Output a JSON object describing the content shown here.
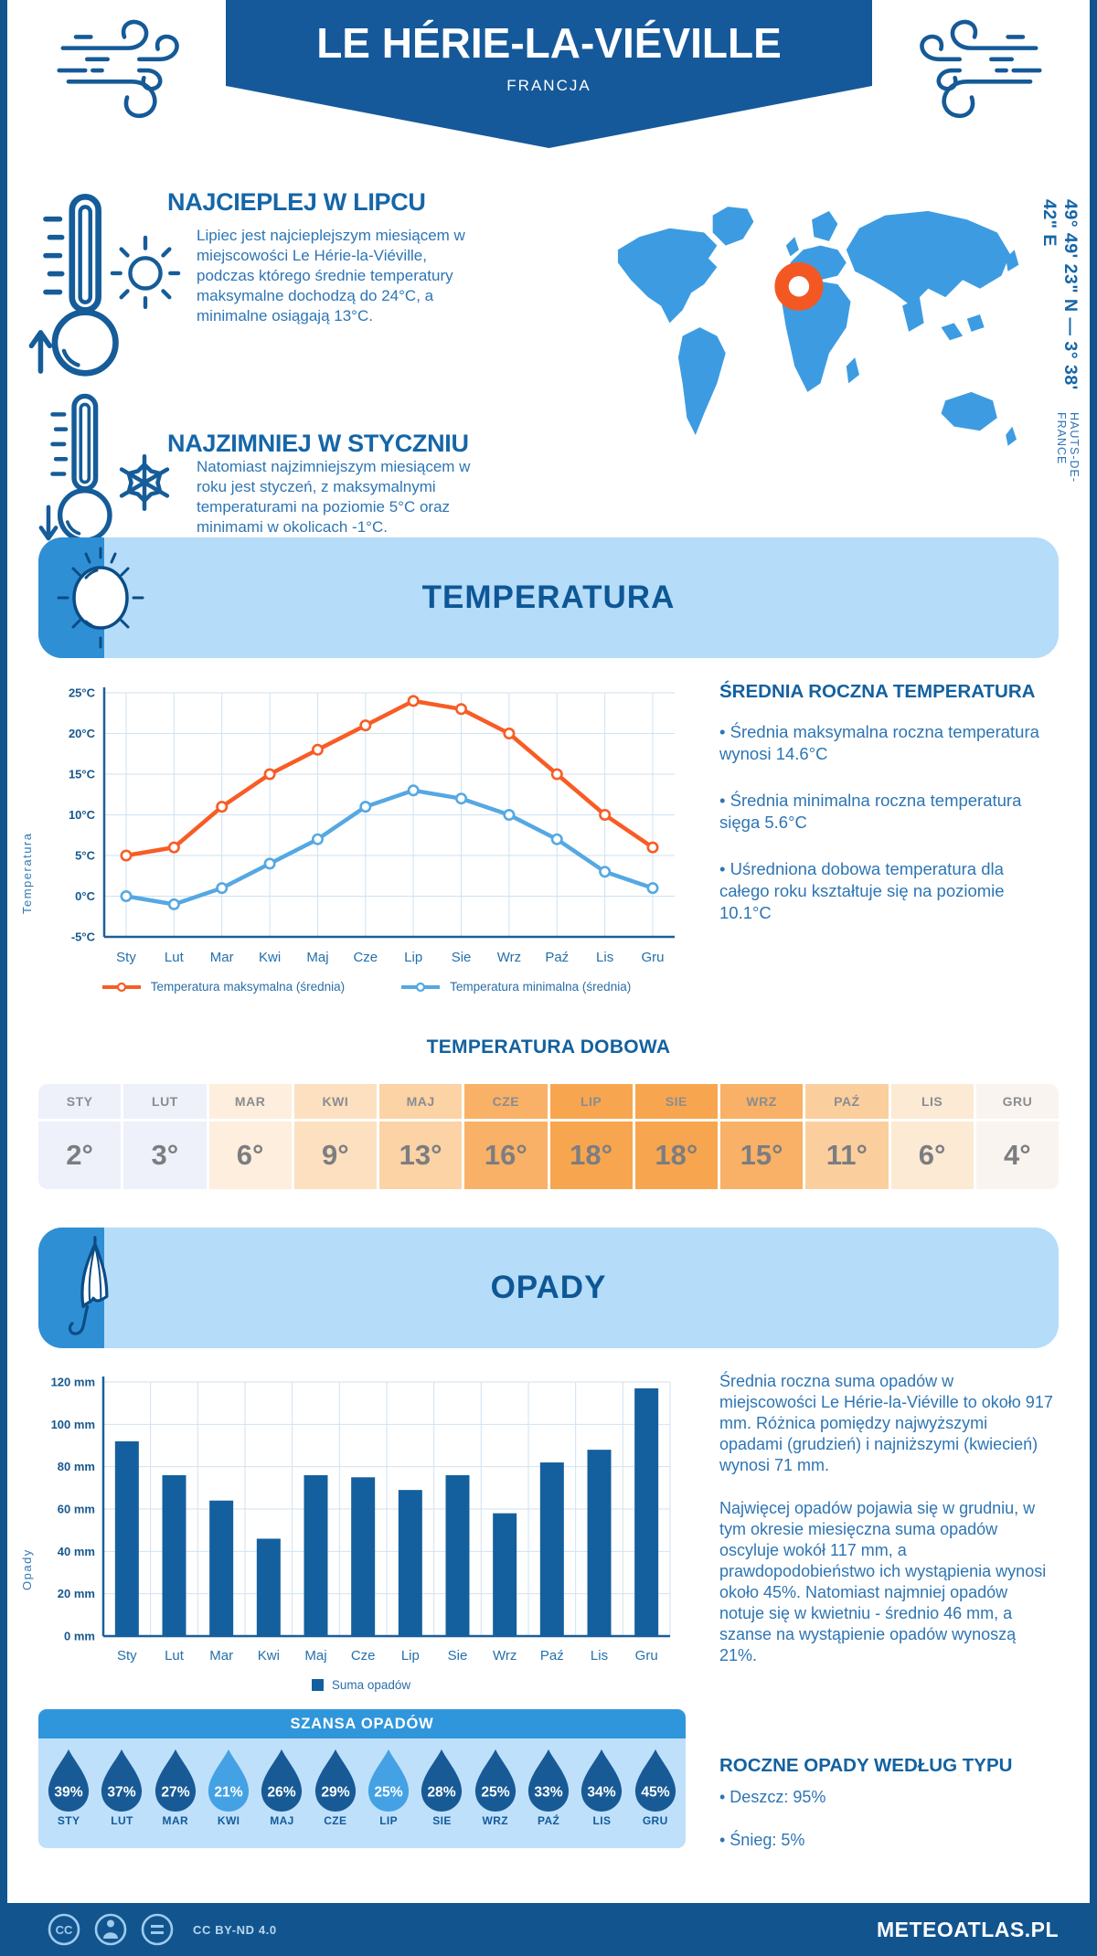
{
  "banner": {
    "title": "LE HÉRIE-LA-VIÉVILLE",
    "country": "FRANCJA"
  },
  "geo": {
    "coordinates": "49° 49' 23\" N — 3° 38' 42\" E",
    "region": "HAUTS-DE-FRANCE"
  },
  "highlights": {
    "warmest": {
      "title": "NAJCIEPLEJ W LIPCU",
      "text": "Lipiec jest najcieplejszym miesiącem w miejscowości Le Hérie-la-Viéville, podczas którego średnie temperatury maksymalne dochodzą do 24°C, a minimalne osiągają 13°C."
    },
    "coldest": {
      "title": "NAJZIMNIEJ W STYCZNIU",
      "text": "Natomiast najzimniejszym miesiącem w roku jest styczeń, z maksymalnymi temperaturami na poziomie 5°C oraz minimami w okolicach -1°C."
    }
  },
  "temperature": {
    "band_title": "TEMPERATURA",
    "annual": {
      "title": "ŚREDNIA ROCZNA TEMPERATURA",
      "bullets": [
        "• Średnia maksymalna roczna temperatura wynosi 14.6°C",
        "• Średnia minimalna roczna temperatura sięga 5.6°C",
        "• Uśredniona dobowa temperatura dla całego roku kształtuje się na poziomie 10.1°C"
      ]
    },
    "daily": {
      "title": "TEMPERATURA DOBOWA",
      "months": [
        "STY",
        "LUT",
        "MAR",
        "KWI",
        "MAJ",
        "CZE",
        "LIP",
        "SIE",
        "WRZ",
        "PAŹ",
        "LIS",
        "GRU"
      ],
      "values": [
        "2°",
        "3°",
        "6°",
        "9°",
        "13°",
        "16°",
        "18°",
        "18°",
        "15°",
        "11°",
        "6°",
        "4°"
      ],
      "colors": [
        "#eef1fa",
        "#eef1fa",
        "#fdeedd",
        "#fce0c0",
        "#fbd3a5",
        "#f8b166",
        "#f7a64f",
        "#f7a64f",
        "#f8b166",
        "#fbcf9d",
        "#fcead4",
        "#faf4f0"
      ]
    }
  },
  "precipitation": {
    "band_title": "OPADY",
    "legend": "Suma opadów",
    "paragraphs": [
      "Średnia roczna suma opadów w miejscowości Le Hérie-la-Viéville to około 917 mm. Różnica pomiędzy najwyższymi opadami (grudzień) i najniższymi (kwiecień) wynosi 71 mm.",
      "Najwięcej opadów pojawia się w grudniu, w tym okresie miesięczna suma opadów oscyluje wokół 117 mm, a prawdopodobieństwo ich wystąpienia wynosi około 45%. Natomiast najmniej opadów notuje się w kwietniu - średnio 46 mm, a szanse na wystąpienie opadów wynoszą 21%."
    ],
    "chance": {
      "title": "SZANSA OPADÓW",
      "months": [
        "STY",
        "LUT",
        "MAR",
        "KWI",
        "MAJ",
        "CZE",
        "LIP",
        "SIE",
        "WRZ",
        "PAŹ",
        "LIS",
        "GRU"
      ],
      "percents": [
        "39%",
        "37%",
        "27%",
        "21%",
        "26%",
        "29%",
        "25%",
        "28%",
        "25%",
        "33%",
        "34%",
        "45%"
      ],
      "drop_colors": [
        "#185a95",
        "#185a95",
        "#185a95",
        "#43a1e4",
        "#185a95",
        "#185a95",
        "#43a1e4",
        "#185a95",
        "#185a95",
        "#185a95",
        "#185a95",
        "#185a95"
      ]
    },
    "types": {
      "title": "ROCZNE OPADY WEDŁUG TYPU",
      "bullets": [
        "• Deszcz: 95%",
        "• Śnieg: 5%"
      ]
    }
  },
  "footer": {
    "license": "CC BY-ND 4.0",
    "site": "METEOATLAS.PL"
  },
  "colors": {
    "brand_blue": "#15599a",
    "band_light_blue": "#b5dcf8",
    "band_accent": "#2f8fd4",
    "map_blue": "#3d9ce1",
    "marker_orange": "#f35822",
    "warm_series": "#f85c25",
    "cold_series": "#55a8e2",
    "bar_blue": "#14609e"
  },
  "chart_data": [
    {
      "type": "line",
      "title": "TEMPERATURA",
      "categories": [
        "Sty",
        "Lut",
        "Mar",
        "Kwi",
        "Maj",
        "Cze",
        "Lip",
        "Sie",
        "Wrz",
        "Paź",
        "Lis",
        "Gru"
      ],
      "series": [
        {
          "name": "Temperatura maksymalna (średnia)",
          "color": "#f85c25",
          "values": [
            5,
            6,
            11,
            15,
            18,
            21,
            24,
            23,
            20,
            15,
            10,
            6
          ]
        },
        {
          "name": "Temperatura minimalna (średnia)",
          "color": "#55a8e2",
          "values": [
            0,
            -1,
            1,
            4,
            7,
            11,
            13,
            12,
            10,
            7,
            3,
            1
          ]
        }
      ],
      "xlabel": "",
      "ylabel": "Temperatura",
      "ylim": [
        -5,
        25
      ],
      "ytick_step": 5,
      "ytick_suffix": "°C",
      "grid": true,
      "legend_position": "bottom"
    },
    {
      "type": "bar",
      "title": "OPADY",
      "categories": [
        "Sty",
        "Lut",
        "Mar",
        "Kwi",
        "Maj",
        "Cze",
        "Lip",
        "Sie",
        "Wrz",
        "Paź",
        "Lis",
        "Gru"
      ],
      "values": [
        92,
        76,
        64,
        46,
        76,
        75,
        69,
        76,
        58,
        82,
        88,
        117
      ],
      "bar_color": "#14609e",
      "legend": "Suma opadów",
      "xlabel": "",
      "ylabel": "Opady",
      "ylim": [
        0,
        120
      ],
      "ytick_step": 20,
      "ytick_suffix": " mm",
      "grid": true,
      "legend_position": "bottom"
    }
  ]
}
